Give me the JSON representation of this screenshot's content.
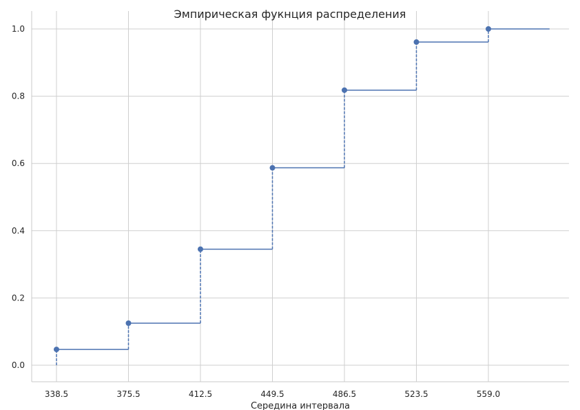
{
  "chart_data": {
    "type": "line",
    "subtype": "step-ecdf",
    "title": "Эмпирическая фукнция распределения",
    "xlabel": "Середина интервала",
    "ylabel": "",
    "x_ticks": [
      "338.5",
      "375.5",
      "412.5",
      "449.5",
      "486.5",
      "523.5",
      "559.0"
    ],
    "y_ticks": [
      "0.0",
      "0.2",
      "0.4",
      "0.6",
      "0.8",
      "1.0"
    ],
    "ylim": [
      -0.05,
      1.05
    ],
    "grid": true,
    "color": "#4c72b0",
    "series": [
      {
        "x": [
          338.5,
          375.5,
          412.5,
          449.5,
          486.5,
          523.5,
          559.0
        ],
        "y": [
          0.047,
          0.125,
          0.345,
          0.587,
          0.818,
          0.961,
          1.0
        ]
      }
    ],
    "last_step_end_offset": 0.85
  }
}
